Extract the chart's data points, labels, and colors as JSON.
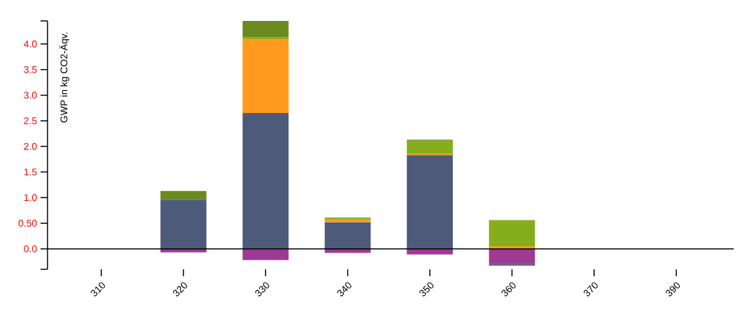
{
  "chart_data": {
    "type": "bar",
    "stacked": true,
    "ylabel": "GWP in kg CO2-Äqv.",
    "categories": [
      "310",
      "320",
      "330",
      "340",
      "350",
      "360",
      "370",
      "390"
    ],
    "ylim": [
      -0.4,
      4.45
    ],
    "yticks": [
      {
        "value": -0.4,
        "label": null
      },
      {
        "value": 0,
        "label": "0.0"
      },
      {
        "value": 0.5,
        "label": "0.50"
      },
      {
        "value": 1,
        "label": "1.0"
      },
      {
        "value": 1.5,
        "label": "1.5"
      },
      {
        "value": 2,
        "label": "2.0"
      },
      {
        "value": 2.5,
        "label": "2.5"
      },
      {
        "value": 3,
        "label": "3.0"
      },
      {
        "value": 3.5,
        "label": "3.5"
      },
      {
        "value": 4,
        "label": "4.0"
      },
      {
        "value": 4.45,
        "label": null
      }
    ],
    "series": [
      {
        "color": "#9e3a94",
        "values": [
          null,
          -0.07,
          -0.22,
          -0.08,
          -0.11,
          -0.3,
          null,
          null
        ]
      },
      {
        "color": "#4e5a7a",
        "values": [
          null,
          0.96,
          2.65,
          0.52,
          1.83,
          -0.03,
          null,
          null
        ]
      },
      {
        "color": "#ff9a1e",
        "values": [
          null,
          null,
          1.44,
          0.05,
          0.02,
          0.05,
          null,
          null
        ]
      },
      {
        "color": "#86ae1c",
        "values": [
          null,
          null,
          0.04,
          0.04,
          0.26,
          0.51,
          null,
          null
        ]
      },
      {
        "color": "#6b8a1e",
        "values": [
          null,
          0.17,
          0.32,
          null,
          0.02,
          null,
          null,
          null
        ]
      }
    ]
  }
}
